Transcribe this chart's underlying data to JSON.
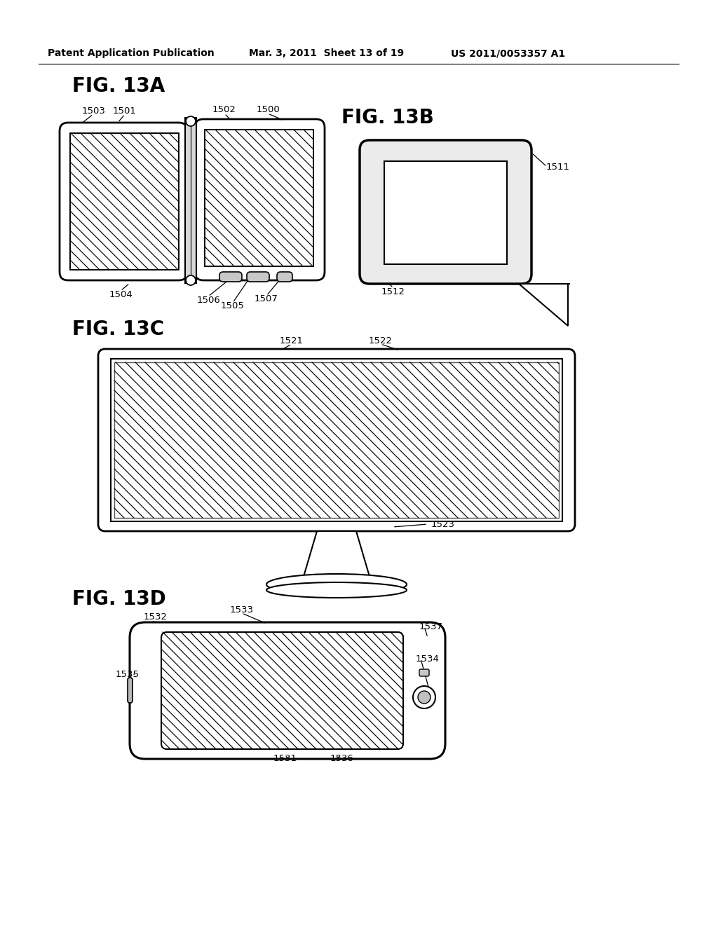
{
  "header_left": "Patent Application Publication",
  "header_mid": "Mar. 3, 2011  Sheet 13 of 19",
  "header_right": "US 2011/0053357 A1",
  "fig13a_label": "FIG. 13A",
  "fig13b_label": "FIG. 13B",
  "fig13c_label": "FIG. 13C",
  "fig13d_label": "FIG. 13D"
}
